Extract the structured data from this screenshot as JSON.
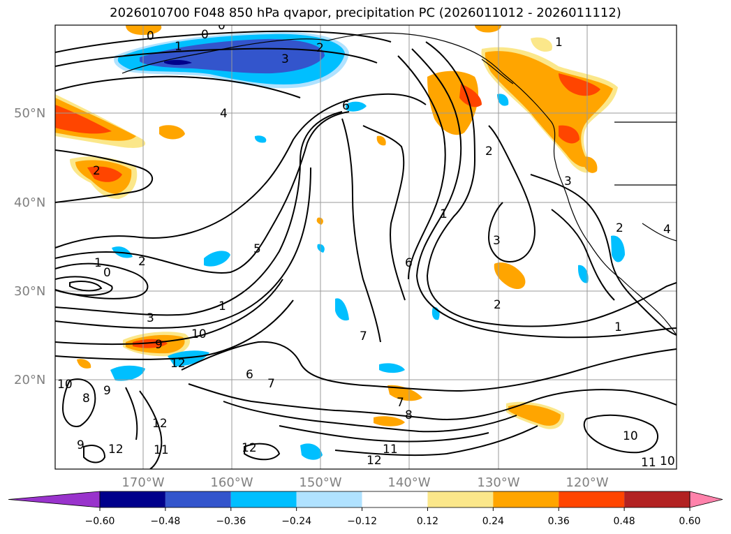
{
  "title": "2026010700 F048 850 hPa qvapor, precipitation PC (2026011012 - 2026011112)",
  "map": {
    "lat_labels": [
      "50°N",
      "40°N",
      "30°N",
      "20°N"
    ],
    "lon_labels": [
      "170°W",
      "160°W",
      "150°W",
      "140°W",
      "130°W",
      "120°W"
    ],
    "contour_labels": [
      {
        "text": "0"
      },
      {
        "text": "0"
      },
      {
        "text": "0"
      },
      {
        "text": "1"
      },
      {
        "text": "2"
      },
      {
        "text": "3"
      },
      {
        "text": "1"
      },
      {
        "text": "4"
      },
      {
        "text": "6"
      },
      {
        "text": "2"
      },
      {
        "text": "2"
      },
      {
        "text": "1"
      },
      {
        "text": "3"
      },
      {
        "text": "3"
      },
      {
        "text": "4"
      },
      {
        "text": "2"
      },
      {
        "text": "5"
      },
      {
        "text": "6"
      },
      {
        "text": "1"
      },
      {
        "text": "0"
      },
      {
        "text": "2"
      },
      {
        "text": "3"
      },
      {
        "text": "9"
      },
      {
        "text": "10"
      },
      {
        "text": "1"
      },
      {
        "text": "7"
      },
      {
        "text": "2"
      },
      {
        "text": "1"
      },
      {
        "text": "12"
      },
      {
        "text": "10"
      },
      {
        "text": "8"
      },
      {
        "text": "9"
      },
      {
        "text": "6"
      },
      {
        "text": "7"
      },
      {
        "text": "7"
      },
      {
        "text": "8"
      },
      {
        "text": "12"
      },
      {
        "text": "11"
      },
      {
        "text": "12"
      },
      {
        "text": "11"
      },
      {
        "text": "12"
      },
      {
        "text": "12"
      },
      {
        "text": "9"
      },
      {
        "text": "10"
      },
      {
        "text": "11"
      },
      {
        "text": "10"
      }
    ]
  },
  "colorbar": {
    "colors": [
      "#9933cc",
      "#00008b",
      "#3355cc",
      "#00bfff",
      "#b0e2ff",
      "#ffffff",
      "#fbe78a",
      "#ffa500",
      "#ff4500",
      "#b22222",
      "#ff82ab"
    ],
    "tick_labels": [
      "−0.60",
      "−0.48",
      "−0.36",
      "−0.24",
      "−0.12",
      "0.12",
      "0.24",
      "0.36",
      "0.48",
      "0.60"
    ]
  }
}
